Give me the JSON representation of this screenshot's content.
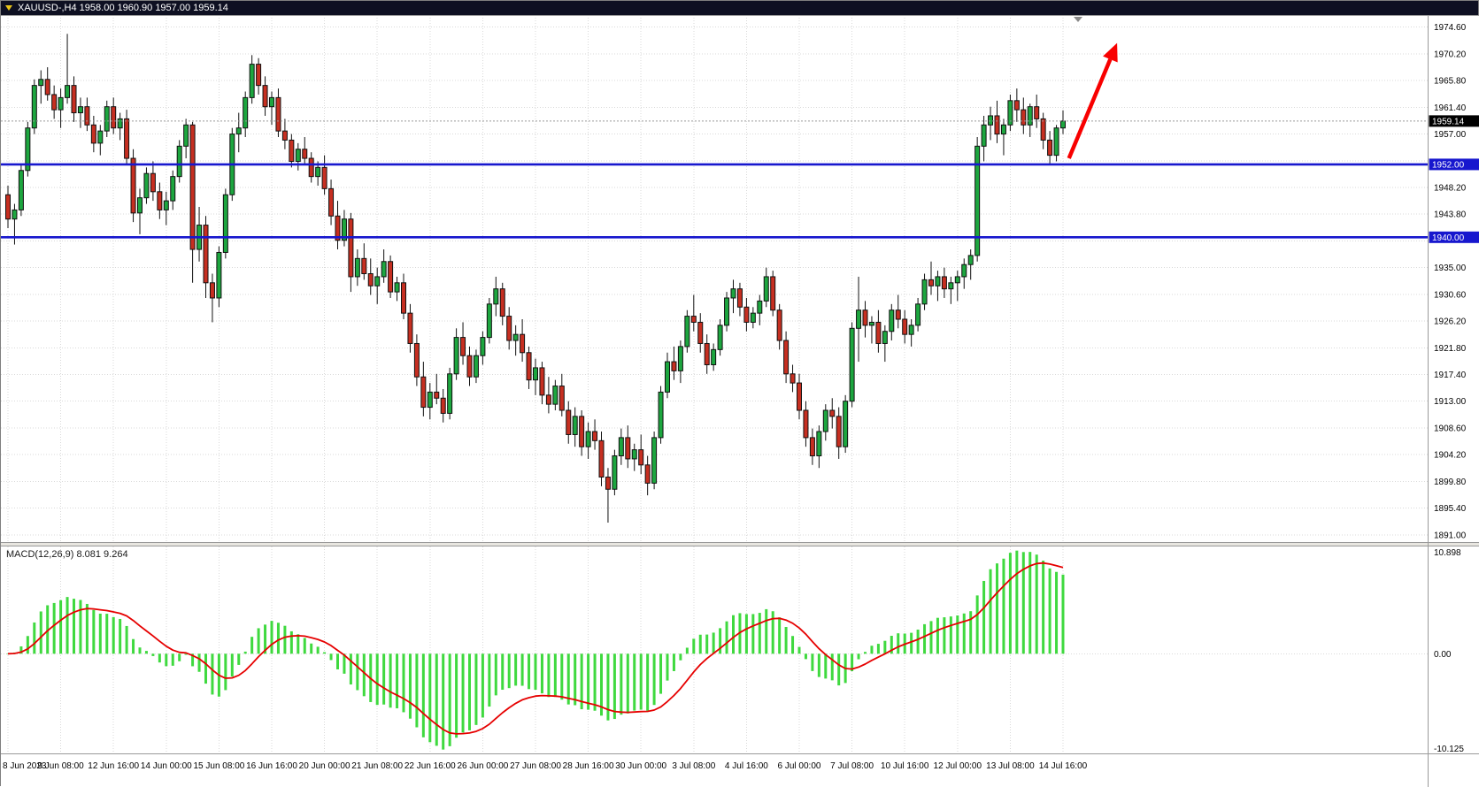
{
  "window": {
    "title": "XAUUSD-,H4  1958.00 1960.90 1957.00 1959.14"
  },
  "chart_data": {
    "type": "candlestick",
    "symbol": "XAUUSD-",
    "timeframe": "H4",
    "last_ohlc": {
      "open": "1958.00",
      "high": "1960.90",
      "low": "1957.00",
      "close": "1959.14"
    },
    "price_axis": {
      "max": 1976.6,
      "min": 1889.8,
      "tick_labels": [
        "1974.60",
        "1970.20",
        "1965.80",
        "1961.40",
        "1957.00",
        "1952.60",
        "1948.20",
        "1943.80",
        "1939.40",
        "1935.00",
        "1930.60",
        "1926.20",
        "1921.80",
        "1917.40",
        "1913.00",
        "1908.60",
        "1904.20",
        "1899.80",
        "1895.40",
        "1891.00"
      ]
    },
    "time_axis": {
      "candles_per_label": 8,
      "labels": [
        "8 Jun 2023",
        "9 Jun 08:00",
        "12 Jun 16:00",
        "14 Jun 00:00",
        "15 Jun 08:00",
        "16 Jun 16:00",
        "20 Jun 00:00",
        "21 Jun 08:00",
        "22 Jun 16:00",
        "26 Jun 00:00",
        "27 Jun 08:00",
        "28 Jun 16:00",
        "30 Jun 00:00",
        "3 Jul 08:00",
        "4 Jul 16:00",
        "6 Jul 00:00",
        "7 Jul 08:00",
        "10 Jul 16:00",
        "12 Jul 00:00",
        "13 Jul 08:00",
        "14 Jul 16:00"
      ]
    },
    "candles": [
      [
        1947.0,
        1948.5,
        1941.5,
        1943.0
      ],
      [
        1943.0,
        1945.5,
        1938.8,
        1944.5
      ],
      [
        1944.5,
        1952.0,
        1943.5,
        1951.0
      ],
      [
        1951.0,
        1959.0,
        1950.0,
        1958.0
      ],
      [
        1958.0,
        1966.0,
        1957.0,
        1965.0
      ],
      [
        1965.0,
        1967.5,
        1962.0,
        1966.0
      ],
      [
        1966.0,
        1968.0,
        1962.5,
        1963.5
      ],
      [
        1963.5,
        1965.0,
        1959.5,
        1961.0
      ],
      [
        1961.0,
        1964.5,
        1958.0,
        1963.0
      ],
      [
        1963.0,
        1973.5,
        1962.0,
        1965.0
      ],
      [
        1965.0,
        1966.5,
        1959.0,
        1960.5
      ],
      [
        1960.5,
        1963.0,
        1958.0,
        1961.5
      ],
      [
        1961.5,
        1963.0,
        1957.5,
        1958.5
      ],
      [
        1958.5,
        1960.0,
        1954.0,
        1955.5
      ],
      [
        1955.5,
        1958.5,
        1953.5,
        1957.5
      ],
      [
        1957.5,
        1962.5,
        1956.5,
        1961.5
      ],
      [
        1961.5,
        1963.0,
        1957.0,
        1958.0
      ],
      [
        1958.0,
        1960.5,
        1956.0,
        1959.5
      ],
      [
        1959.5,
        1961.0,
        1952.0,
        1953.0
      ],
      [
        1953.0,
        1954.5,
        1942.5,
        1944.0
      ],
      [
        1944.0,
        1948.0,
        1940.5,
        1946.5
      ],
      [
        1946.5,
        1951.5,
        1945.5,
        1950.5
      ],
      [
        1950.5,
        1952.5,
        1946.0,
        1947.5
      ],
      [
        1947.5,
        1949.0,
        1943.0,
        1944.5
      ],
      [
        1944.5,
        1947.5,
        1942.0,
        1946.0
      ],
      [
        1946.0,
        1951.0,
        1944.5,
        1950.0
      ],
      [
        1950.0,
        1956.0,
        1949.0,
        1955.0
      ],
      [
        1955.0,
        1959.5,
        1953.0,
        1958.5
      ],
      [
        1958.5,
        1959.0,
        1932.5,
        1938.0
      ],
      [
        1938.0,
        1945.0,
        1936.0,
        1942.0
      ],
      [
        1942.0,
        1943.5,
        1930.0,
        1932.5
      ],
      [
        1932.5,
        1934.0,
        1926.0,
        1930.0
      ],
      [
        1930.0,
        1938.5,
        1928.5,
        1937.5
      ],
      [
        1937.5,
        1948.0,
        1936.5,
        1947.0
      ],
      [
        1947.0,
        1958.0,
        1946.0,
        1957.0
      ],
      [
        1957.0,
        1960.5,
        1954.0,
        1958.0
      ],
      [
        1958.0,
        1964.0,
        1956.5,
        1963.0
      ],
      [
        1963.0,
        1970.0,
        1962.0,
        1968.5
      ],
      [
        1968.5,
        1969.5,
        1963.5,
        1965.0
      ],
      [
        1965.0,
        1966.5,
        1960.0,
        1961.5
      ],
      [
        1961.5,
        1964.0,
        1958.5,
        1963.0
      ],
      [
        1963.0,
        1964.5,
        1956.5,
        1957.5
      ],
      [
        1957.5,
        1959.5,
        1954.5,
        1956.0
      ],
      [
        1956.0,
        1957.0,
        1951.5,
        1952.5
      ],
      [
        1952.5,
        1955.5,
        1951.0,
        1954.5
      ],
      [
        1954.5,
        1956.5,
        1952.0,
        1953.0
      ],
      [
        1953.0,
        1954.0,
        1949.0,
        1950.0
      ],
      [
        1950.0,
        1952.5,
        1948.5,
        1951.5
      ],
      [
        1951.5,
        1953.5,
        1947.0,
        1948.0
      ],
      [
        1948.0,
        1949.5,
        1942.0,
        1943.5
      ],
      [
        1943.5,
        1946.0,
        1938.0,
        1939.5
      ],
      [
        1939.5,
        1944.5,
        1938.5,
        1943.0
      ],
      [
        1943.0,
        1944.0,
        1931.0,
        1933.5
      ],
      [
        1933.5,
        1938.0,
        1932.0,
        1936.5
      ],
      [
        1936.5,
        1939.0,
        1933.0,
        1934.0
      ],
      [
        1934.0,
        1936.5,
        1930.5,
        1932.0
      ],
      [
        1932.0,
        1935.0,
        1929.0,
        1933.5
      ],
      [
        1933.5,
        1938.0,
        1932.5,
        1936.0
      ],
      [
        1936.0,
        1937.0,
        1930.0,
        1931.0
      ],
      [
        1931.0,
        1933.5,
        1929.5,
        1932.5
      ],
      [
        1932.5,
        1934.0,
        1926.5,
        1927.5
      ],
      [
        1927.5,
        1929.0,
        1921.0,
        1922.5
      ],
      [
        1922.5,
        1924.0,
        1915.5,
        1917.0
      ],
      [
        1917.0,
        1919.5,
        1910.5,
        1912.0
      ],
      [
        1912.0,
        1916.0,
        1910.0,
        1914.5
      ],
      [
        1914.5,
        1917.5,
        1912.5,
        1913.5
      ],
      [
        1913.5,
        1915.0,
        1909.5,
        1911.0
      ],
      [
        1911.0,
        1918.5,
        1910.0,
        1917.5
      ],
      [
        1917.5,
        1925.0,
        1916.5,
        1923.5
      ],
      [
        1923.5,
        1926.0,
        1919.0,
        1920.5
      ],
      [
        1920.5,
        1922.0,
        1915.5,
        1917.0
      ],
      [
        1917.0,
        1921.5,
        1916.0,
        1920.5
      ],
      [
        1920.5,
        1924.5,
        1919.0,
        1923.5
      ],
      [
        1923.5,
        1930.0,
        1922.5,
        1929.0
      ],
      [
        1929.0,
        1933.5,
        1927.0,
        1931.5
      ],
      [
        1931.5,
        1932.5,
        1925.5,
        1927.0
      ],
      [
        1927.0,
        1928.5,
        1921.5,
        1923.0
      ],
      [
        1923.0,
        1925.5,
        1920.5,
        1924.0
      ],
      [
        1924.0,
        1926.5,
        1919.5,
        1921.0
      ],
      [
        1921.0,
        1922.0,
        1915.0,
        1916.5
      ],
      [
        1916.5,
        1920.0,
        1914.0,
        1918.5
      ],
      [
        1918.5,
        1919.5,
        1912.5,
        1914.0
      ],
      [
        1914.0,
        1917.0,
        1911.0,
        1912.5
      ],
      [
        1912.5,
        1916.5,
        1911.5,
        1915.5
      ],
      [
        1915.5,
        1917.5,
        1910.5,
        1911.5
      ],
      [
        1911.5,
        1913.0,
        1906.0,
        1907.5
      ],
      [
        1907.5,
        1912.0,
        1905.5,
        1910.5
      ],
      [
        1910.5,
        1911.5,
        1904.0,
        1905.5
      ],
      [
        1905.5,
        1909.5,
        1903.5,
        1908.0
      ],
      [
        1908.0,
        1910.0,
        1905.0,
        1906.5
      ],
      [
        1906.5,
        1908.0,
        1899.0,
        1900.5
      ],
      [
        1900.5,
        1902.0,
        1893.0,
        1898.5
      ],
      [
        1898.5,
        1905.0,
        1897.5,
        1904.0
      ],
      [
        1904.0,
        1908.5,
        1902.5,
        1907.0
      ],
      [
        1907.0,
        1909.0,
        1902.0,
        1903.5
      ],
      [
        1903.5,
        1906.0,
        1901.5,
        1905.0
      ],
      [
        1905.0,
        1907.5,
        1901.0,
        1902.5
      ],
      [
        1902.5,
        1904.0,
        1897.5,
        1899.5
      ],
      [
        1899.5,
        1908.0,
        1898.5,
        1907.0
      ],
      [
        1907.0,
        1915.5,
        1906.0,
        1914.5
      ],
      [
        1914.5,
        1921.0,
        1913.5,
        1919.5
      ],
      [
        1919.5,
        1922.0,
        1916.5,
        1918.0
      ],
      [
        1918.0,
        1923.0,
        1916.0,
        1922.0
      ],
      [
        1922.0,
        1928.0,
        1921.0,
        1927.0
      ],
      [
        1927.0,
        1930.5,
        1924.5,
        1926.0
      ],
      [
        1926.0,
        1927.5,
        1921.0,
        1922.5
      ],
      [
        1922.5,
        1924.0,
        1917.5,
        1919.0
      ],
      [
        1919.0,
        1922.5,
        1918.0,
        1921.5
      ],
      [
        1921.5,
        1926.5,
        1920.5,
        1925.5
      ],
      [
        1925.5,
        1931.0,
        1924.5,
        1930.0
      ],
      [
        1930.0,
        1933.0,
        1927.5,
        1931.5
      ],
      [
        1931.5,
        1932.5,
        1927.0,
        1928.5
      ],
      [
        1928.5,
        1930.0,
        1924.5,
        1926.0
      ],
      [
        1926.0,
        1928.5,
        1925.0,
        1927.5
      ],
      [
        1927.5,
        1930.5,
        1925.5,
        1929.5
      ],
      [
        1929.5,
        1935.0,
        1928.5,
        1933.5
      ],
      [
        1933.5,
        1934.5,
        1927.0,
        1928.0
      ],
      [
        1928.0,
        1929.0,
        1921.5,
        1923.0
      ],
      [
        1923.0,
        1924.5,
        1916.0,
        1917.5
      ],
      [
        1917.5,
        1919.0,
        1914.5,
        1916.0
      ],
      [
        1916.0,
        1917.5,
        1910.0,
        1911.5
      ],
      [
        1911.5,
        1913.0,
        1905.5,
        1907.0
      ],
      [
        1907.0,
        1908.5,
        1902.5,
        1904.0
      ],
      [
        1904.0,
        1909.0,
        1902.0,
        1908.0
      ],
      [
        1908.0,
        1912.5,
        1906.5,
        1911.5
      ],
      [
        1911.5,
        1913.5,
        1908.5,
        1910.5
      ],
      [
        1910.5,
        1912.0,
        1903.5,
        1905.5
      ],
      [
        1905.5,
        1914.0,
        1904.5,
        1913.0
      ],
      [
        1913.0,
        1926.0,
        1912.0,
        1925.0
      ],
      [
        1925.0,
        1933.5,
        1919.5,
        1928.0
      ],
      [
        1928.0,
        1929.5,
        1923.5,
        1925.5
      ],
      [
        1925.5,
        1927.0,
        1922.5,
        1926.0
      ],
      [
        1926.0,
        1928.0,
        1921.0,
        1922.5
      ],
      [
        1922.5,
        1925.5,
        1919.5,
        1924.5
      ],
      [
        1924.5,
        1929.0,
        1923.0,
        1928.0
      ],
      [
        1928.0,
        1930.5,
        1925.0,
        1926.5
      ],
      [
        1926.5,
        1928.0,
        1922.5,
        1924.0
      ],
      [
        1924.0,
        1926.5,
        1922.0,
        1925.5
      ],
      [
        1925.5,
        1930.0,
        1924.5,
        1929.0
      ],
      [
        1929.0,
        1934.0,
        1928.0,
        1933.0
      ],
      [
        1933.0,
        1936.0,
        1930.5,
        1932.0
      ],
      [
        1932.0,
        1934.5,
        1929.5,
        1933.5
      ],
      [
        1933.5,
        1935.0,
        1930.0,
        1931.5
      ],
      [
        1931.5,
        1933.5,
        1929.0,
        1932.5
      ],
      [
        1932.5,
        1934.5,
        1929.5,
        1933.5
      ],
      [
        1933.5,
        1936.5,
        1931.5,
        1935.5
      ],
      [
        1935.5,
        1938.0,
        1933.0,
        1937.0
      ],
      [
        1937.0,
        1956.5,
        1936.0,
        1955.0
      ],
      [
        1955.0,
        1960.0,
        1952.5,
        1958.5
      ],
      [
        1958.5,
        1961.5,
        1956.0,
        1960.0
      ],
      [
        1960.0,
        1962.5,
        1955.5,
        1957.0
      ],
      [
        1957.0,
        1959.5,
        1953.5,
        1958.5
      ],
      [
        1958.5,
        1963.5,
        1957.5,
        1962.5
      ],
      [
        1962.5,
        1964.5,
        1959.0,
        1961.0
      ],
      [
        1961.0,
        1963.0,
        1957.0,
        1958.5
      ],
      [
        1958.5,
        1962.0,
        1956.5,
        1961.5
      ],
      [
        1961.5,
        1963.5,
        1958.0,
        1959.5
      ],
      [
        1959.5,
        1960.5,
        1954.5,
        1956.0
      ],
      [
        1956.0,
        1957.5,
        1952.0,
        1953.5
      ],
      [
        1953.5,
        1958.5,
        1952.5,
        1958.0
      ],
      [
        1958.0,
        1960.9,
        1957.0,
        1959.14
      ]
    ],
    "current_price": {
      "value": 1959.14,
      "label": "1959.14"
    },
    "horizontal_lines": [
      {
        "name": "resistance-line-1952",
        "price": 1952.0,
        "label": "1952.00",
        "color": "#1717ce"
      },
      {
        "name": "support-line-1940",
        "price": 1940.0,
        "label": "1940.00",
        "color": "#1717ce"
      }
    ],
    "arrow_annotation": {
      "x_index_from": 160.9,
      "price_from": 1953.0,
      "x_index_to": 168.2,
      "price_to": 1972.0,
      "color": "#f80000"
    },
    "macd": {
      "label": "MACD(12,26,9)",
      "value_main": "8.081",
      "value_signal": "9.264",
      "params": [
        12,
        26,
        9
      ],
      "axis_max_label": "10.898",
      "axis_zero_label": "0.00",
      "axis_min_label": "-10.125",
      "histogram_color": "#3fd93f",
      "signal_color": "#e60000"
    },
    "colors": {
      "bull": "#1da63f",
      "bear": "#c62f21",
      "outline": "#111111",
      "grid": "#d9d9d9",
      "bg": "#ffffff",
      "axis_text": "#000000",
      "current_price_badge_bg": "#000000",
      "current_price_line": "#999999"
    }
  }
}
